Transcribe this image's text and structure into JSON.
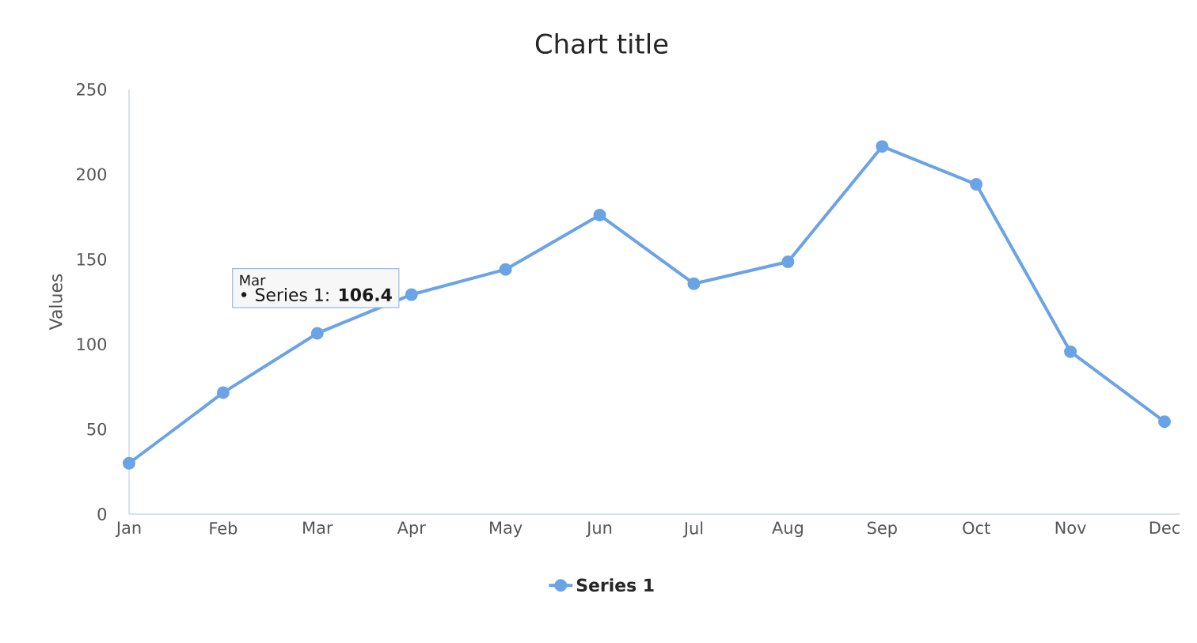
{
  "chart_data": {
    "type": "line",
    "title": "Chart title",
    "ylabel": "Values",
    "categories": [
      "Jan",
      "Feb",
      "Mar",
      "Apr",
      "May",
      "Jun",
      "Jul",
      "Aug",
      "Sep",
      "Oct",
      "Nov",
      "Dec"
    ],
    "series": [
      {
        "name": "Series 1",
        "color": "#6aa3e6",
        "values": [
          29.9,
          71.5,
          106.4,
          129.2,
          144.0,
          176.0,
          135.6,
          148.5,
          216.4,
          194.1,
          95.6,
          54.4
        ]
      }
    ],
    "ylim": [
      0,
      250
    ],
    "yticks": [
      0,
      50,
      100,
      150,
      200,
      250
    ],
    "annotations": [
      "Mar",
      "• Series 1: **106.4**"
    ],
    "grid": false,
    "legend": "bottom",
    "marker": "circle",
    "line_style": "solid"
  }
}
